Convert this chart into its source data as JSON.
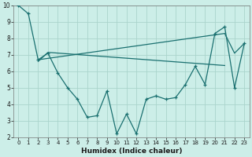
{
  "xlabel": "Humidex (Indice chaleur)",
  "bg_color": "#cceee8",
  "grid_color": "#aad4cc",
  "line_color": "#1a7070",
  "xlim": [
    -0.5,
    23.5
  ],
  "ylim": [
    2,
    10
  ],
  "xticks": [
    0,
    1,
    2,
    3,
    4,
    5,
    6,
    7,
    8,
    9,
    10,
    11,
    12,
    13,
    14,
    15,
    16,
    17,
    18,
    19,
    20,
    21,
    22,
    23
  ],
  "yticks": [
    2,
    3,
    4,
    5,
    6,
    7,
    8,
    9,
    10
  ],
  "line1_x": [
    0,
    1,
    2,
    3,
    4,
    5,
    6,
    7,
    8,
    9,
    10,
    11,
    12,
    13,
    14,
    15,
    16,
    17,
    18,
    19,
    20,
    21,
    22,
    23
  ],
  "line1_y": [
    10.0,
    9.5,
    6.7,
    7.1,
    5.9,
    5.0,
    4.3,
    3.2,
    3.3,
    4.8,
    2.2,
    3.4,
    2.2,
    4.3,
    4.5,
    4.3,
    4.4,
    5.2,
    6.3,
    5.2,
    8.3,
    8.7,
    5.0,
    7.7
  ],
  "line2_x": [
    2,
    21,
    22,
    23
  ],
  "line2_y": [
    6.7,
    8.3,
    7.1,
    7.7
  ],
  "line3_x": [
    2,
    3,
    21
  ],
  "line3_y": [
    6.6,
    7.15,
    6.35
  ]
}
